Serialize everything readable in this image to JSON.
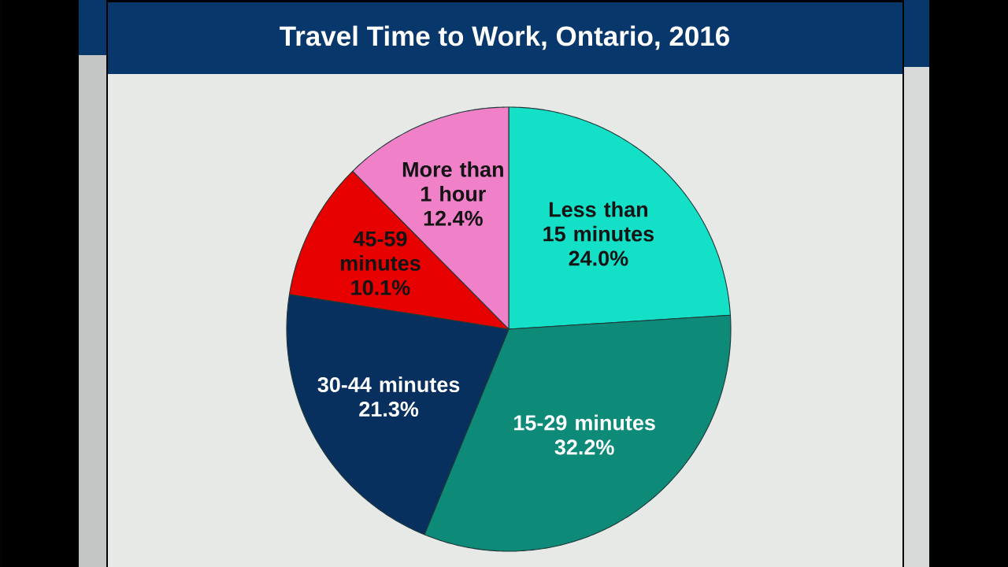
{
  "chart_data": {
    "type": "pie",
    "title": "Travel Time to Work, Ontario, 2016",
    "categories": [
      "Less than 15 minutes",
      "15-29 minutes",
      "30-44 minutes",
      "45-59 minutes",
      "More than 1 hour"
    ],
    "values": [
      24.0,
      32.2,
      21.3,
      10.1,
      12.4
    ],
    "colors": [
      "#14e0c8",
      "#0d8a78",
      "#08305e",
      "#e60000",
      "#f080c8"
    ],
    "value_labels": [
      "24.0%",
      "32.2%",
      "21.3%",
      "10.1%",
      "12.4%"
    ]
  }
}
